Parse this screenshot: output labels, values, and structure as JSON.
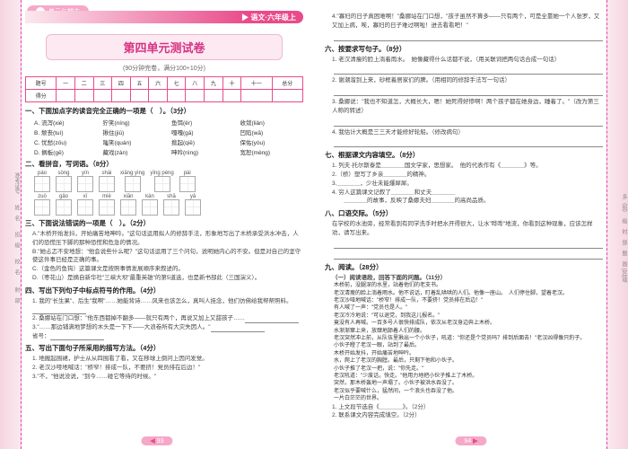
{
  "header": {
    "badge": "单元与期末",
    "strip": "▶ 语文·六年级上"
  },
  "title": "第四单元测试卷",
  "subtitle": "(90分钟完卷，满分100+10分)",
  "scoreHeaders": [
    "题号",
    "一",
    "二",
    "三",
    "四",
    "五",
    "六",
    "七",
    "八",
    "九",
    "十",
    "十一",
    "总分"
  ],
  "scoreRow": "得分",
  "q1": {
    "head": "一、下面加点字的读音完全正确的一项是（　）。（3分）",
    "opts": [
      "A. 流泻(xiè)",
      "狞笑(níng)",
      "鱼饵(ěr)",
      "收敛(liǎn)",
      "B. 颓丧(tuí)",
      "揪住(jiū)",
      "嘎嘎(gā)",
      "凹陷(wā)",
      "C. 忧愁(zōu)",
      "嗤笑(quán)",
      "掀起(qiē)",
      "保佑(yòu)",
      "D. 搁板(gē)",
      "藏戏(zàn)",
      "呻吟(nìng)",
      "宽恕(mèng)"
    ]
  },
  "q2": {
    "head": "二、看拼音，写词语。（8分）",
    "row1": [
      "páo",
      "sòng",
      "yín",
      "shài",
      "xiāng yìng",
      "yīng pèng",
      "pài"
    ],
    "row2": [
      "zuò",
      "gǎo",
      "xī",
      "miè",
      "xiān",
      "kàn",
      "shā",
      "yǎ"
    ]
  },
  "q3": {
    "head": "三、下面说法错误的一项是（　）。（2分）",
    "opts": [
      "A.\"木桥开始发抖，开始痛苦地呻吟。\"这句话运用拟人的修辞手法，形象地写出了木桥承受洪水冲击，人们的恐慌压下脚的那种恐慌和危急的情况。",
      "B.\"她忐忑不安地想：\"他会说些什么呢？\"这句话运用了三个问句，说明她内心的不安。但是对自己的坚守使这件事已经是正确的事。",
      "C.（金色的鱼钩）这篇课文是按照事情发展顺序来叙述的。",
      "D.（枣花山）是摘自新华社\"三峡大坝\"最重英雄\"的第5道选，也是新书部此（三国演义）。"
    ]
  },
  "q4": {
    "head": "四、写出下列句子中标点符号的作用。（4分）",
    "items": [
      "1. 我的\"长生果\"、后生\"我啊\"……她能背诗……风来也该怎么，真叫人挂念，他们仿佛给我帮帮照料。",
      "2. 桑娜站在门口想：\"他东西都掉不翻多——就只有两个，再说又加上又甜孩子……",
      "3.\"……那边铺满地梦想的木头是一下下——大浪卷所有大灾失因人。\"",
      "省号："
    ]
  },
  "q5": {
    "head": "五、写出下面句子所采用的描写方法。（4分）",
    "items": [
      "1. 地搬起围裙，护士从从四围看了看，又在移球上倒问上因问发觉。",
      "2. 老汉沙哑地喊话：\"桥窄！排成一队，不要挤！党员排在后边！\"",
      "3.\"不，\"他说没说，\"到今……碰它等待的时候。\""
    ]
  },
  "right": {
    "q4_4": "4.\"寡妇的日子真困难啊！\"桑娜站在门口想，\"孩子虽然不算多——只有两个，可是全靠她一个人张罗，又又加上病，唉，寡妇的日子难过啊啦！进去看看吧！\"",
    "q6": {
      "head": "六、按要求写句子。（8分）",
      "items": [
        "1. 老汉清瘦的脸上淌着雨水。　她像藏得什么话都不说，（用关联词把两句话合成一句话）",
        "2. 谢潮溜到上来，砂框着居家们的脾。（用相同的修辞手法写一句话）",
        "3. 桑娜说：\"我也不知道怎，大概长大，嗯！她死得好惨啊！两个孩子都在她身边，睡着了。\"（改为第三人称的转述）",
        "4. 我估计大概是三三天才能修好轮船。（修改病句）"
      ]
    },
    "q7": {
      "head": "七、根据课文内容填空。（8分）",
      "items": [
        "1. 列夫·托尔斯泰是＿＿＿＿国文学家，思想家。　他的代表作有《＿＿＿＿》等。",
        "2.（桥）塑写了乡亲＿＿＿＿的精神。",
        "3.＿＿＿＿，少壮未能爆犀犀。",
        "4. 穷人这篇课文记叙了＿＿＿＿和丈夫＿＿＿＿",
        "　　＿＿＿＿的故事，反映了桑娜夫妇＿＿＿＿的高尚品质。"
      ]
    },
    "q8": {
      "head": "八、口语交际。（5分）",
      "text": "在学校的水池旁，经常看到有同学洗手时把水开得很大，让水\"哗哗\"地流，你看到这种现象，应该怎样劝，请写出来。"
    },
    "q9": {
      "head": "九、阅读。（28分）",
      "sub1": "（一）阅读语段，回答下面的问题。（11分）",
      "body": [
        "木桥前，没腿深的水里，站着他们的老支书。",
        "老汉清瘦的脸上淌着雨水。他不说话，盯着乱哄哄的人们。他像一座山。　人们停住脚，望着老汉。",
        "老汉沙哑地喊话：\"桥窄！排成一队，不要挤！党员排在后边！\"",
        "有人喊了一声：\"党员也是人。\"",
        "老汉冷冷地说：\"可以退党，到我这儿报名。\"",
        "竟没有人再喊。一百多号人很快排成队，依次从老汉身边奔上木桥。",
        "水渐渐窜上来，放肆地舔着人们的腰。",
        "老汉突然冲上前，从队伍里揪出一个小伙子，吼道：\"你还是个党员吗？排到后面去！\"老汉凶得像只豹子。",
        "小伙子瞪了老汉一眼，站到了最后。",
        "木桥开始发抖，开始痛苦地呻吟。",
        "水，爬上了老汉的胸膛。最后，只剩下他和小伙子。",
        "小伙子推了老汉一把，说：\"你先走。\"",
        "老汉吼道：\"少废话，快走。\"他用力地把小伙子推上了木桥。",
        "突然，那木桥轰地一声塌了。小伙子被洪水吞没了。",
        "老汉似乎要喊什么，猛然间，一个浪头也吞没了他。",
        "一片白茫茫的世界。"
      ],
      "questions": [
        "1. 上文段节选自《＿＿＿＿》。（2分）",
        "2. 联系课文内容完成填空。（2分）"
      ]
    }
  },
  "pageL": "93",
  "pageR": "94",
  "gutterL": "准考证号　　姓　名　　班　级　　校　名 　　射　部",
  "gutterR": "多（班）　级　时　部　题　图 (区)域"
}
